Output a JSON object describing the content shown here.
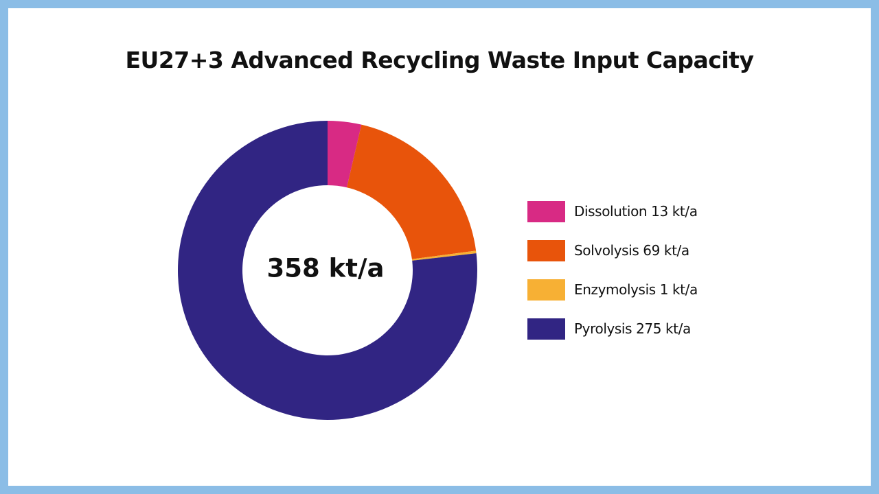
{
  "chart_data": {
    "type": "pie",
    "variant": "donut",
    "title": "EU27+3 Advanced Recycling Waste Input Capacity",
    "center_label": "358 kt/a",
    "unit": "kt/a",
    "legend_placement": "right",
    "start_angle_deg": 0,
    "direction": "clockwise",
    "series": [
      {
        "slices": [
          {
            "name": "Dissolution",
            "value": 13,
            "color": "#d82a84",
            "legend_label": "Dissolution 13 kt/a"
          },
          {
            "name": "Solvolysis",
            "value": 69,
            "color": "#e8540b",
            "legend_label": "Solvolysis 69 kt/a"
          },
          {
            "name": "Enzymolysis",
            "value": 1,
            "color": "#f7b034",
            "legend_label": "Enzymolysis 1 kt/a"
          },
          {
            "name": "Pyrolysis",
            "value": 275,
            "color": "#312583",
            "legend_label": "Pyrolysis 275 kt/a"
          }
        ]
      }
    ]
  },
  "colors": {
    "page_background": "#ffffff",
    "outer_border": "#8bbde6",
    "text": "#111111"
  }
}
